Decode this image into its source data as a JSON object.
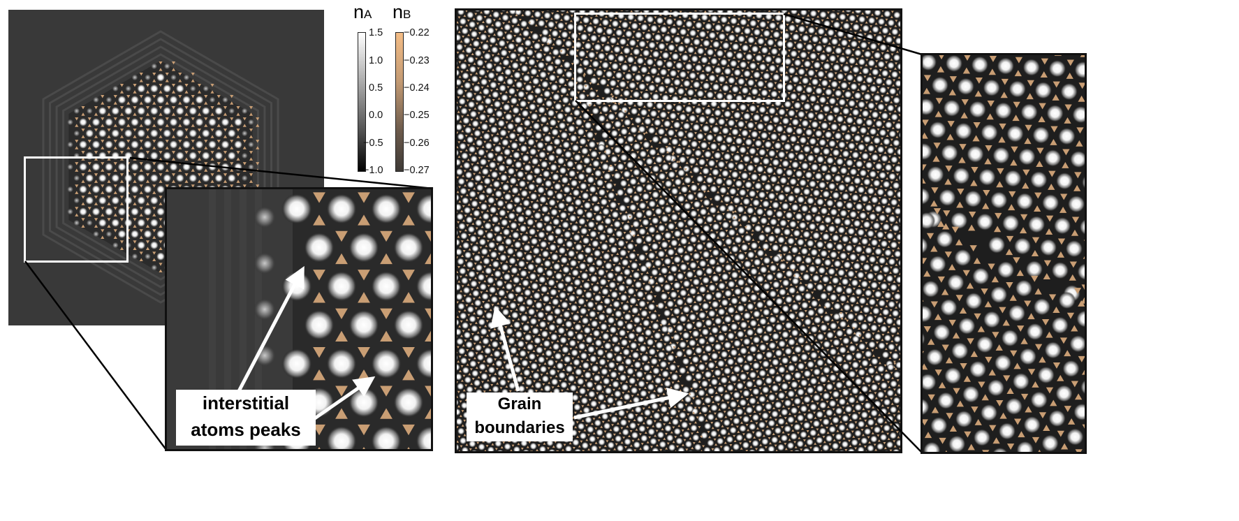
{
  "colorbars": {
    "a": {
      "label_main": "n",
      "label_sub": "A",
      "ticks": [
        "1.5",
        "1.0",
        "0.5",
        "0.0",
        "−0.5",
        "−1.0"
      ],
      "colors": [
        "#ffffff",
        "#000000"
      ]
    },
    "b": {
      "label_main": "n",
      "label_sub": "B",
      "ticks": [
        "−0.22",
        "−0.23",
        "−0.24",
        "−0.25",
        "−0.26",
        "−0.27"
      ],
      "colors": [
        "#f4bd86",
        "#3e3a36"
      ]
    }
  },
  "annotations": {
    "interstitial": {
      "line1": "interstitial",
      "line2": "atoms peaks"
    },
    "grain": {
      "line1": "Grain",
      "line2": "boundaries"
    }
  },
  "palette": {
    "background": "#3a3a3a",
    "tan": "#c99e74",
    "atom": "#ffffff",
    "callout": "#ffffff"
  }
}
